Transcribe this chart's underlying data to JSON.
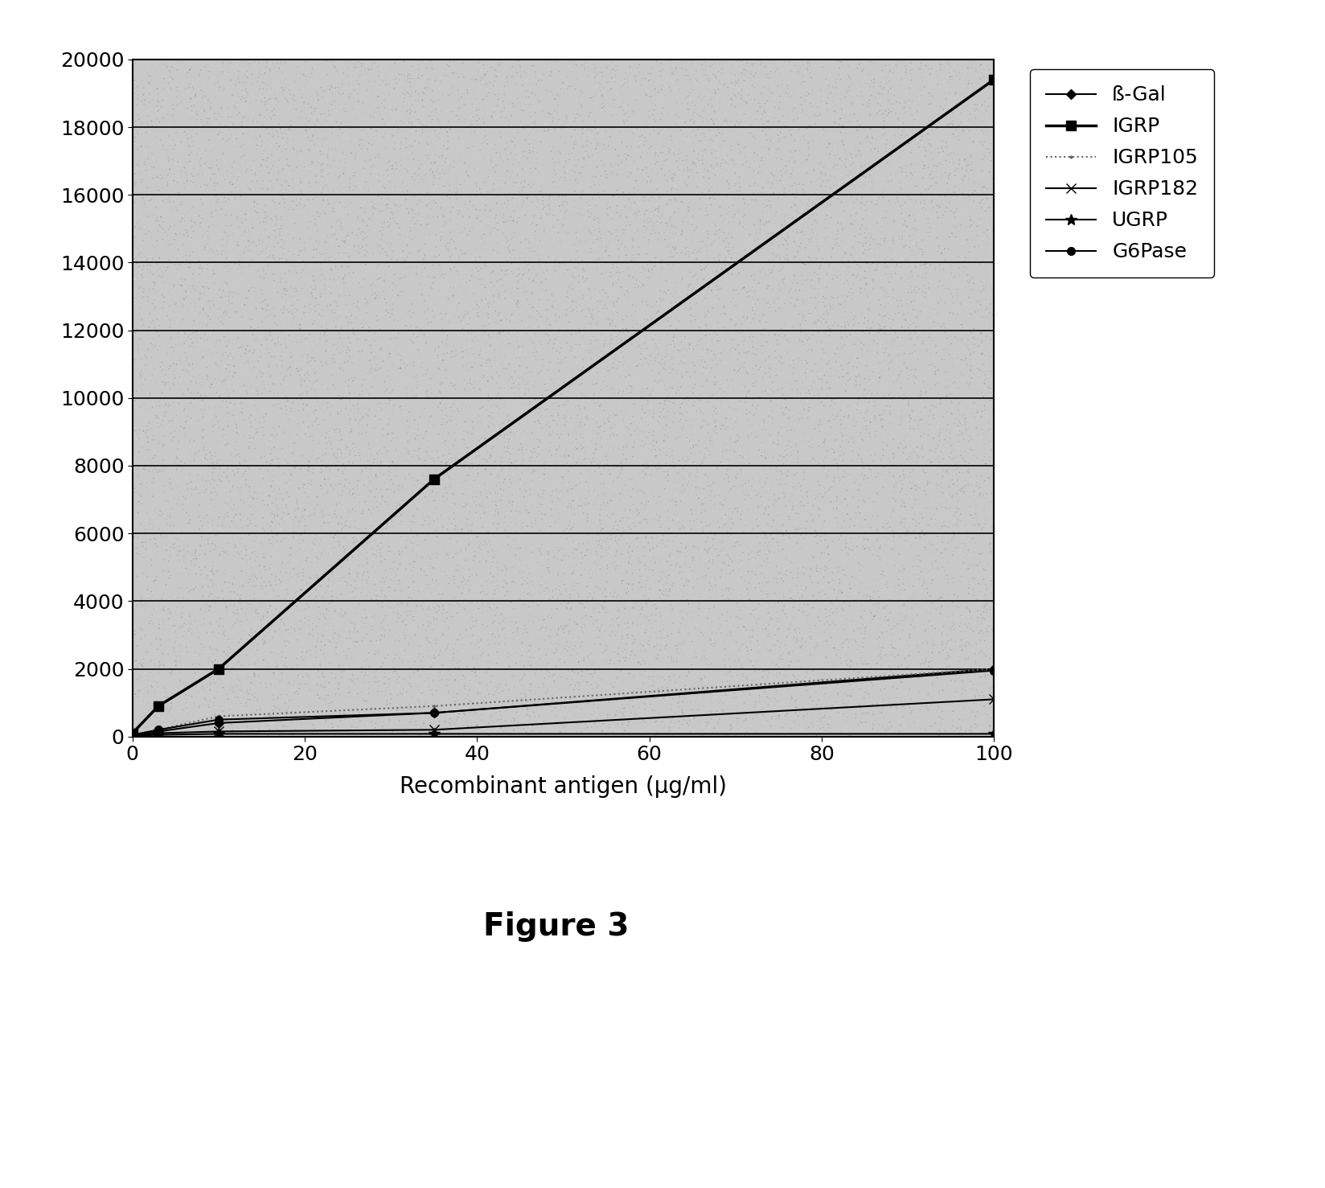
{
  "title": "Figure 3",
  "xlabel": "Recombinant antigen (μg/ml)",
  "ylabel": "",
  "xlim": [
    0,
    100
  ],
  "ylim": [
    0,
    20000
  ],
  "yticks": [
    0,
    2000,
    4000,
    6000,
    8000,
    10000,
    12000,
    14000,
    16000,
    18000,
    20000
  ],
  "xticks": [
    0,
    20,
    40,
    60,
    80,
    100
  ],
  "series": {
    "B-Gal": {
      "x": [
        0,
        3,
        10,
        35,
        100
      ],
      "y": [
        50,
        150,
        400,
        700,
        2000
      ],
      "color": "#000000",
      "marker": "D",
      "linestyle": "-",
      "linewidth": 1.5,
      "markersize": 6
    },
    "IGRP": {
      "x": [
        0,
        3,
        10,
        35,
        100
      ],
      "y": [
        100,
        900,
        2000,
        7600,
        19400
      ],
      "color": "#000000",
      "marker": "s",
      "linestyle": "-",
      "linewidth": 2.5,
      "markersize": 9
    },
    "IGRP105": {
      "x": [
        0,
        3,
        10,
        35,
        100
      ],
      "y": [
        50,
        200,
        600,
        900,
        2000
      ],
      "color": "#666666",
      "marker": ".",
      "linestyle": ":",
      "linewidth": 1.5,
      "markersize": 4
    },
    "IGRP182": {
      "x": [
        0,
        3,
        10,
        35,
        100
      ],
      "y": [
        30,
        100,
        150,
        200,
        1100
      ],
      "color": "#000000",
      "marker": "x",
      "linestyle": "-",
      "linewidth": 1.5,
      "markersize": 8
    },
    "UGRP": {
      "x": [
        0,
        3,
        10,
        35,
        100
      ],
      "y": [
        30,
        50,
        80,
        80,
        80
      ],
      "color": "#000000",
      "marker": "*",
      "linestyle": "-",
      "linewidth": 1.5,
      "markersize": 10
    },
    "G6Pase": {
      "x": [
        0,
        3,
        10,
        35,
        100
      ],
      "y": [
        50,
        200,
        500,
        700,
        1950
      ],
      "color": "#000000",
      "marker": "o",
      "linestyle": "-",
      "linewidth": 1.5,
      "markersize": 7
    }
  },
  "legend_labels": [
    "ß-Gal",
    "IGRP",
    "IGRP105",
    "IGRP182",
    "UGRP",
    "G6Pase"
  ],
  "bg_color": "#c8c8c8",
  "fig_width": 16.48,
  "fig_height": 14.77,
  "dpi": 100
}
